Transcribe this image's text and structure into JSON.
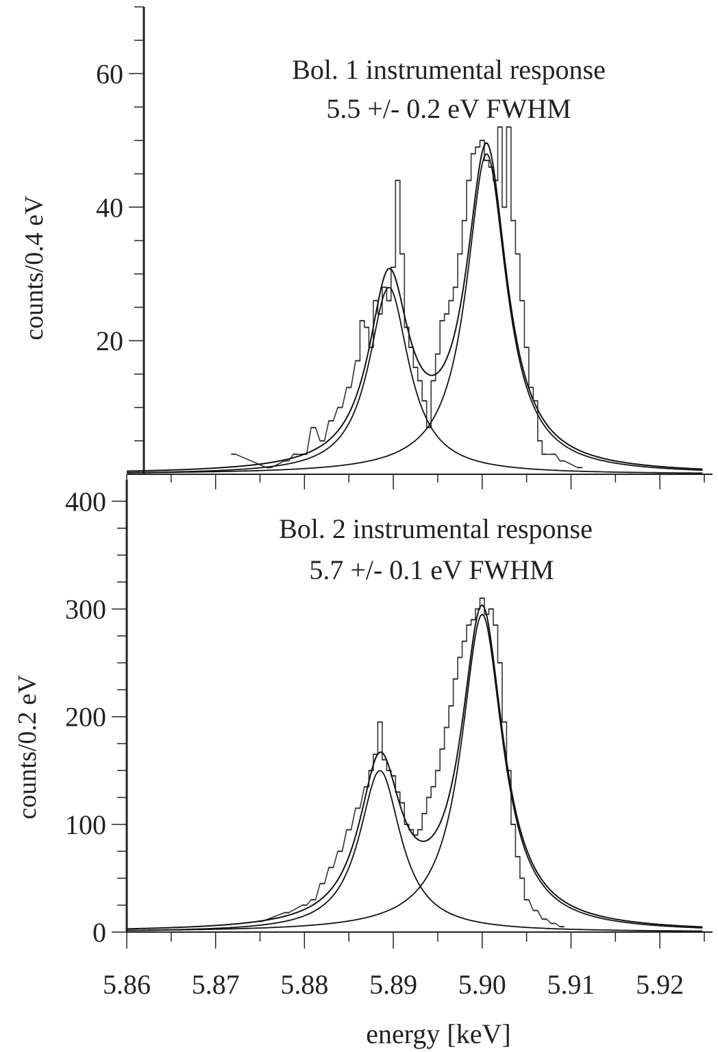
{
  "chart_data": [
    {
      "type": "line",
      "title": "Bol. 1 instrumental response",
      "subtitle": "5.5 +/- 0.2 eV FWHM",
      "xlabel": "",
      "ylabel": "counts/0.4 eV",
      "xlim": [
        5.86,
        5.925
      ],
      "ylim": [
        0,
        70
      ],
      "yticks": [
        20,
        40,
        60
      ],
      "grid": false,
      "series": [
        {
          "name": "",
          "style": "histogram",
          "x": [
            5.872,
            5.876,
            5.878,
            5.879,
            5.88,
            5.881,
            5.882,
            5.883,
            5.884,
            5.885,
            5.886,
            5.8865,
            5.887,
            5.8875,
            5.888,
            5.8885,
            5.889,
            5.8895,
            5.89,
            5.8905,
            5.891,
            5.8915,
            5.892,
            5.8925,
            5.893,
            5.8935,
            5.894,
            5.8945,
            5.895,
            5.8955,
            5.896,
            5.8965,
            5.897,
            5.8975,
            5.898,
            5.8985,
            5.899,
            5.8995,
            5.9,
            5.9005,
            5.901,
            5.9015,
            5.902,
            5.9025,
            5.903,
            5.9035,
            5.904,
            5.9045,
            5.905,
            5.9055,
            5.906,
            5.9065,
            5.907,
            5.908,
            5.909,
            5.911
          ],
          "y": [
            3,
            1,
            2,
            3,
            3,
            7,
            5,
            8,
            10,
            13,
            17,
            23,
            22,
            19,
            26,
            24,
            28,
            26,
            31,
            44,
            33,
            22,
            19,
            16,
            14,
            11,
            7,
            14,
            18,
            23,
            24,
            26,
            28,
            33,
            38,
            44,
            48,
            49,
            50,
            47,
            46,
            44,
            52,
            40,
            52,
            38,
            33,
            26,
            19,
            13,
            11,
            5,
            3,
            3,
            2,
            1
          ]
        },
        {
          "name": "",
          "style": "fit",
          "center": 5.8895,
          "amplitude": 28,
          "fwhm": 0.0055
        },
        {
          "name": "",
          "style": "fit",
          "center": 5.9005,
          "amplitude": 48,
          "fwhm": 0.0055
        },
        {
          "name": "",
          "style": "fit-sum"
        }
      ]
    },
    {
      "type": "line",
      "title": "Bol. 2 instrumental response",
      "subtitle": "5.7 +/- 0.1 eV FWHM",
      "xlabel": "energy [keV]",
      "ylabel": "counts/0.2 eV",
      "xlim": [
        5.86,
        5.925
      ],
      "ylim": [
        0,
        420
      ],
      "xticks": [
        5.86,
        5.87,
        5.88,
        5.89,
        5.9,
        5.91,
        5.92
      ],
      "xticklabels": [
        "5.86",
        "5.87",
        "5.88",
        "5.89",
        "5.90",
        "5.91",
        "5.92"
      ],
      "yticks": [
        0,
        100,
        200,
        300,
        400
      ],
      "grid": false,
      "series": [
        {
          "name": "",
          "style": "histogram",
          "x": [
            5.875,
            5.878,
            5.88,
            5.881,
            5.882,
            5.883,
            5.884,
            5.885,
            5.886,
            5.887,
            5.8875,
            5.888,
            5.8885,
            5.889,
            5.8895,
            5.89,
            5.8905,
            5.891,
            5.8915,
            5.892,
            5.8925,
            5.893,
            5.8935,
            5.894,
            5.8945,
            5.895,
            5.8955,
            5.896,
            5.8965,
            5.897,
            5.8975,
            5.898,
            5.8985,
            5.899,
            5.8995,
            5.9,
            5.9005,
            5.901,
            5.9015,
            5.902,
            5.9025,
            5.903,
            5.9035,
            5.904,
            5.9045,
            5.905,
            5.906,
            5.907,
            5.908,
            5.909
          ],
          "y": [
            10,
            18,
            25,
            30,
            45,
            60,
            75,
            95,
            115,
            135,
            150,
            165,
            195,
            160,
            150,
            145,
            130,
            120,
            100,
            95,
            90,
            95,
            110,
            125,
            135,
            150,
            170,
            190,
            210,
            235,
            255,
            270,
            285,
            290,
            300,
            310,
            295,
            300,
            285,
            250,
            195,
            150,
            100,
            70,
            50,
            30,
            20,
            12,
            8,
            5
          ]
        },
        {
          "name": "",
          "style": "fit",
          "center": 5.8885,
          "amplitude": 150,
          "fwhm": 0.0057
        },
        {
          "name": "",
          "style": "fit",
          "center": 5.9,
          "amplitude": 295,
          "fwhm": 0.0057
        },
        {
          "name": "",
          "style": "fit-sum"
        }
      ]
    }
  ]
}
